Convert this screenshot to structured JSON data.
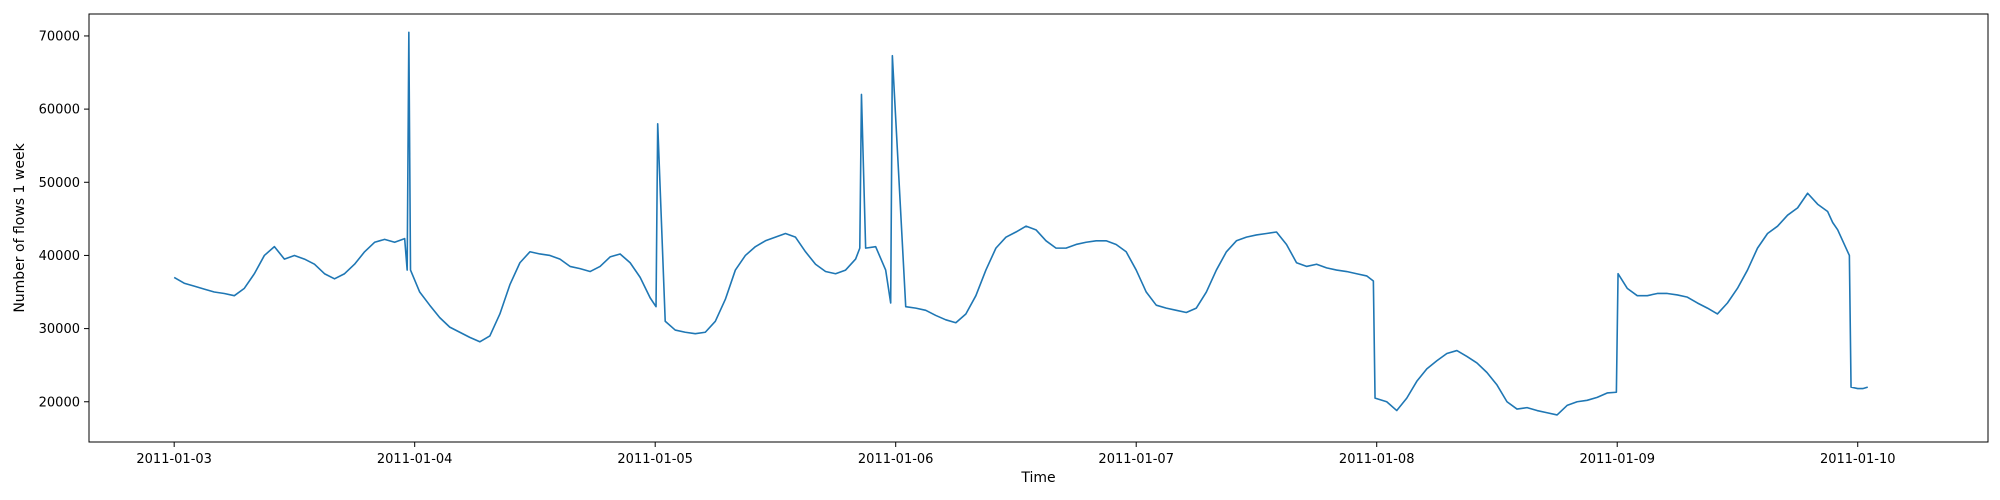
{
  "chart_data": {
    "type": "line",
    "title": "",
    "xlabel": "Time",
    "ylabel": "Number of flows 1 week",
    "xlim": [
      "2011-01-02 15:30",
      "2011-01-10 13:00"
    ],
    "ylim": [
      14500,
      73000
    ],
    "grid": false,
    "legend": "none",
    "xticks": [
      "2011-01-03",
      "2011-01-04",
      "2011-01-05",
      "2011-01-06",
      "2011-01-07",
      "2011-01-08",
      "2011-01-09",
      "2011-01-10"
    ],
    "yticks": [
      20000,
      30000,
      40000,
      50000,
      60000,
      70000
    ],
    "ytick_labels": [
      "20000",
      "30000",
      "40000",
      "50000",
      "60000",
      "70000"
    ],
    "series": [
      {
        "color": "#1f77b4",
        "x": [
          "2011-01-03 00:00",
          "2011-01-03 01:00",
          "2011-01-03 02:00",
          "2011-01-03 03:00",
          "2011-01-03 04:00",
          "2011-01-03 05:00",
          "2011-01-03 06:00",
          "2011-01-03 07:00",
          "2011-01-03 08:00",
          "2011-01-03 09:00",
          "2011-01-03 10:00",
          "2011-01-03 11:00",
          "2011-01-03 12:00",
          "2011-01-03 13:00",
          "2011-01-03 14:00",
          "2011-01-03 15:00",
          "2011-01-03 16:00",
          "2011-01-03 17:00",
          "2011-01-03 18:00",
          "2011-01-03 19:00",
          "2011-01-03 20:00",
          "2011-01-03 21:00",
          "2011-01-03 22:00",
          "2011-01-03 23:00",
          "2011-01-03 23:15",
          "2011-01-03 23:25",
          "2011-01-03 23:35",
          "2011-01-04 00:30",
          "2011-01-04 01:30",
          "2011-01-04 02:30",
          "2011-01-04 03:30",
          "2011-01-04 04:30",
          "2011-01-04 05:30",
          "2011-01-04 06:30",
          "2011-01-04 07:30",
          "2011-01-04 08:30",
          "2011-01-04 09:30",
          "2011-01-04 10:30",
          "2011-01-04 11:30",
          "2011-01-04 12:30",
          "2011-01-04 13:30",
          "2011-01-04 14:30",
          "2011-01-04 15:30",
          "2011-01-04 16:30",
          "2011-01-04 17:30",
          "2011-01-04 18:30",
          "2011-01-04 19:30",
          "2011-01-04 20:30",
          "2011-01-04 21:30",
          "2011-01-04 22:30",
          "2011-01-04 23:30",
          "2011-01-05 00:05",
          "2011-01-05 00:15",
          "2011-01-05 01:00",
          "2011-01-05 02:00",
          "2011-01-05 03:00",
          "2011-01-05 04:00",
          "2011-01-05 05:00",
          "2011-01-05 06:00",
          "2011-01-05 07:00",
          "2011-01-05 08:00",
          "2011-01-05 09:00",
          "2011-01-05 10:00",
          "2011-01-05 11:00",
          "2011-01-05 12:00",
          "2011-01-05 13:00",
          "2011-01-05 14:00",
          "2011-01-05 15:00",
          "2011-01-05 16:00",
          "2011-01-05 17:00",
          "2011-01-05 18:00",
          "2011-01-05 19:00",
          "2011-01-05 20:00",
          "2011-01-05 20:25",
          "2011-01-05 20:35",
          "2011-01-05 21:00",
          "2011-01-05 22:00",
          "2011-01-05 23:00",
          "2011-01-05 23:30",
          "2011-01-05 23:40",
          "2011-01-06 01:00",
          "2011-01-06 02:00",
          "2011-01-06 03:00",
          "2011-01-06 04:00",
          "2011-01-06 05:00",
          "2011-01-06 06:00",
          "2011-01-06 07:00",
          "2011-01-06 08:00",
          "2011-01-06 09:00",
          "2011-01-06 10:00",
          "2011-01-06 11:00",
          "2011-01-06 12:00",
          "2011-01-06 13:00",
          "2011-01-06 14:00",
          "2011-01-06 15:00",
          "2011-01-06 16:00",
          "2011-01-06 17:00",
          "2011-01-06 18:00",
          "2011-01-06 19:00",
          "2011-01-06 20:00",
          "2011-01-06 21:00",
          "2011-01-06 22:00",
          "2011-01-06 23:00",
          "2011-01-07 00:00",
          "2011-01-07 01:00",
          "2011-01-07 02:00",
          "2011-01-07 03:00",
          "2011-01-07 04:00",
          "2011-01-07 05:00",
          "2011-01-07 06:00",
          "2011-01-07 07:00",
          "2011-01-07 08:00",
          "2011-01-07 09:00",
          "2011-01-07 10:00",
          "2011-01-07 11:00",
          "2011-01-07 12:00",
          "2011-01-07 13:00",
          "2011-01-07 14:00",
          "2011-01-07 15:00",
          "2011-01-07 16:00",
          "2011-01-07 17:00",
          "2011-01-07 18:00",
          "2011-01-07 19:00",
          "2011-01-07 20:00",
          "2011-01-07 21:00",
          "2011-01-07 22:00",
          "2011-01-07 23:00",
          "2011-01-07 23:40",
          "2011-01-07 23:50",
          "2011-01-08 01:00",
          "2011-01-08 02:00",
          "2011-01-08 03:00",
          "2011-01-08 04:00",
          "2011-01-08 05:00",
          "2011-01-08 06:00",
          "2011-01-08 07:00",
          "2011-01-08 08:00",
          "2011-01-08 09:00",
          "2011-01-08 10:00",
          "2011-01-08 11:00",
          "2011-01-08 12:00",
          "2011-01-08 13:00",
          "2011-01-08 14:00",
          "2011-01-08 15:00",
          "2011-01-08 16:00",
          "2011-01-08 17:00",
          "2011-01-08 18:00",
          "2011-01-08 19:00",
          "2011-01-08 20:00",
          "2011-01-08 21:00",
          "2011-01-08 22:00",
          "2011-01-08 23:00",
          "2011-01-08 23:55",
          "2011-01-09 00:05",
          "2011-01-09 01:00",
          "2011-01-09 02:00",
          "2011-01-09 03:00",
          "2011-01-09 04:00",
          "2011-01-09 05:00",
          "2011-01-09 06:00",
          "2011-01-09 07:00",
          "2011-01-09 08:00",
          "2011-01-09 09:00",
          "2011-01-09 10:00",
          "2011-01-09 11:00",
          "2011-01-09 12:00",
          "2011-01-09 13:00",
          "2011-01-09 14:00",
          "2011-01-09 15:00",
          "2011-01-09 16:00",
          "2011-01-09 17:00",
          "2011-01-09 18:00",
          "2011-01-09 19:00",
          "2011-01-09 20:00",
          "2011-01-09 21:00",
          "2011-01-09 21:30",
          "2011-01-09 22:00",
          "2011-01-09 22:30",
          "2011-01-09 23:00",
          "2011-01-09 23:10",
          "2011-01-09 23:20",
          "2011-01-10 00:00",
          "2011-01-10 00:30",
          "2011-01-10 01:00"
        ],
        "y": [
          37000,
          36200,
          35800,
          35400,
          35000,
          34800,
          34500,
          35500,
          37500,
          40000,
          41200,
          39500,
          40000,
          39500,
          38800,
          37500,
          36800,
          37500,
          38800,
          40500,
          41800,
          42200,
          41800,
          42300,
          38000,
          70500,
          38000,
          35000,
          33200,
          31500,
          30200,
          29500,
          28800,
          28200,
          29000,
          32000,
          36000,
          39000,
          40500,
          40200,
          40000,
          39500,
          38500,
          38200,
          37800,
          38500,
          39800,
          40200,
          39000,
          37000,
          34200,
          33000,
          58000,
          31000,
          29800,
          29500,
          29300,
          29500,
          31000,
          34000,
          38000,
          40000,
          41200,
          42000,
          42500,
          43000,
          42500,
          40500,
          38800,
          37800,
          37500,
          38000,
          39500,
          41000,
          62000,
          41000,
          41200,
          38000,
          33500,
          67300,
          33000,
          32800,
          32500,
          31800,
          31200,
          30800,
          32000,
          34500,
          38000,
          41000,
          42500,
          43200,
          44000,
          43500,
          42000,
          41000,
          41000,
          41500,
          41800,
          42000,
          42000,
          41500,
          40500,
          38000,
          35000,
          33200,
          32800,
          32500,
          32200,
          32800,
          35000,
          38000,
          40500,
          42000,
          42500,
          42800,
          43000,
          43200,
          41500,
          39000,
          38500,
          38800,
          38300,
          38000,
          37800,
          37500,
          37200,
          36500,
          20500,
          20000,
          18800,
          20500,
          22800,
          24500,
          25600,
          26600,
          27000,
          26200,
          25300,
          24000,
          22300,
          20000,
          19000,
          19200,
          18800,
          18500,
          18200,
          19500,
          20000,
          20200,
          20600,
          21200,
          21300,
          37500,
          35500,
          34500,
          34500,
          34800,
          34800,
          34600,
          34300,
          33500,
          32800,
          32000,
          33500,
          35500,
          38000,
          41000,
          43000,
          44000,
          45500,
          46500,
          48500,
          47000,
          46000,
          44500,
          43500,
          42000,
          40500,
          40000,
          22000,
          21800,
          21800,
          22000
        ]
      }
    ]
  }
}
